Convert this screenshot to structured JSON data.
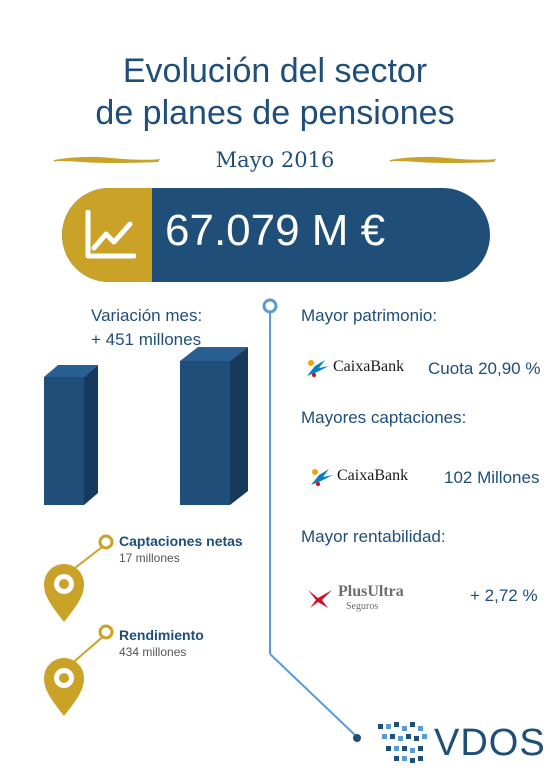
{
  "header": {
    "title_line1": "Evolución del sector",
    "title_line2": "de planes de pensiones",
    "date": "Mayo 2016"
  },
  "total": {
    "value": "67.079 M €",
    "icon": "chart-trend-icon"
  },
  "variation": {
    "label": "Variación mes:",
    "value": "+ 451 millones"
  },
  "bars": {
    "series": [
      {
        "name": "Captaciones netas",
        "value": 17
      },
      {
        "name": "Rendimiento",
        "value": 434
      }
    ]
  },
  "pins": [
    {
      "title": "Captaciones netas",
      "sub": "17 millones"
    },
    {
      "title": "Rendimiento",
      "sub": "434 millones"
    }
  ],
  "rankings": {
    "patrimonio": {
      "label": "Mayor patrimonio:",
      "brand": "CaixaBank",
      "value": "Cuota 20,90 %"
    },
    "captaciones": {
      "label": "Mayores captaciones:",
      "brand": "CaixaBank",
      "value": "102 Millones"
    },
    "rentabilidad": {
      "label": "Mayor rentabilidad:",
      "brand": "PlusUltra",
      "brand_sub": "Seguros",
      "value": "+ 2,72 %"
    }
  },
  "footer": {
    "brand": "VDOS"
  },
  "colors": {
    "navy": "#1f4e79",
    "gold": "#c9a227",
    "light_blue": "#5b9bd5"
  }
}
